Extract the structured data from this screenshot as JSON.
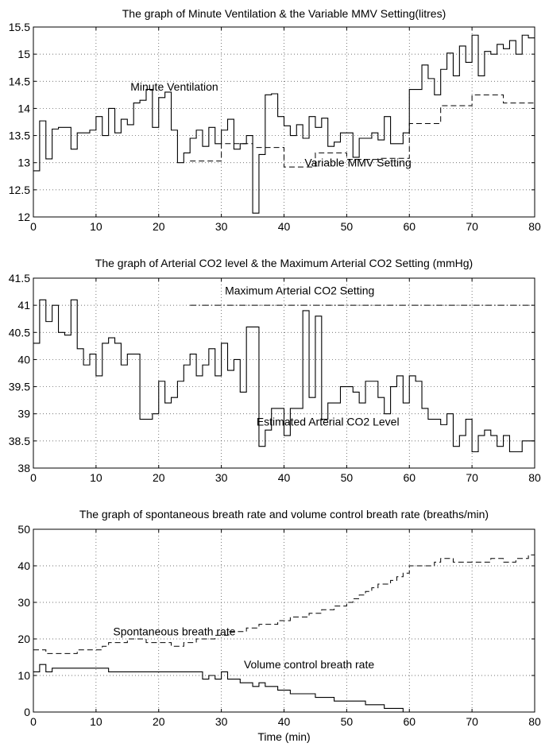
{
  "chart_data": [
    {
      "type": "line",
      "title": "The graph of Minute Ventilation & the Variable MMV Setting(litres)",
      "xlabel": "",
      "ylabel": "",
      "xlim": [
        0,
        80
      ],
      "ylim": [
        12,
        15.5
      ],
      "xticks": [
        0,
        10,
        20,
        30,
        40,
        50,
        60,
        70,
        80
      ],
      "yticks": [
        12,
        12.5,
        13,
        13.5,
        14,
        14.5,
        15,
        15.5
      ],
      "xtick_labels": [
        "0",
        "10",
        "20",
        "30",
        "40",
        "50",
        "60",
        "70",
        "80"
      ],
      "ytick_labels": [
        "12",
        "12.5",
        "13",
        "13.5",
        "14",
        "14.5",
        "15",
        "15.5"
      ],
      "grid": true,
      "series": [
        {
          "name": "Minute Ventilation",
          "style": "solid",
          "step": true,
          "x": [
            0,
            1,
            2,
            3,
            4,
            5,
            6,
            7,
            8,
            9,
            10,
            11,
            12,
            13,
            14,
            15,
            16,
            17,
            18,
            19,
            20,
            21,
            22,
            23,
            24,
            25,
            26,
            27,
            28,
            29,
            30,
            31,
            32,
            33,
            34,
            35,
            36,
            37,
            38,
            39,
            40,
            41,
            42,
            43,
            44,
            45,
            46,
            47,
            48,
            49,
            50,
            51,
            52,
            53,
            54,
            55,
            56,
            57,
            58,
            59,
            60,
            61,
            62,
            63,
            64,
            65,
            66,
            67,
            68,
            69,
            70,
            71,
            72,
            73,
            74,
            75,
            76,
            77,
            78,
            79,
            80
          ],
          "y": [
            12.85,
            13.77,
            13.07,
            13.62,
            13.65,
            13.65,
            13.25,
            13.55,
            13.55,
            13.6,
            13.85,
            13.5,
            14.0,
            13.55,
            13.8,
            13.7,
            14.1,
            14.15,
            14.35,
            13.65,
            14.2,
            14.3,
            13.6,
            13.0,
            13.18,
            13.45,
            13.6,
            13.3,
            13.65,
            13.35,
            13.6,
            13.8,
            13.25,
            13.35,
            13.5,
            12.07,
            13.15,
            14.25,
            14.27,
            13.85,
            13.68,
            13.5,
            13.7,
            13.45,
            13.85,
            13.65,
            13.82,
            13.3,
            13.38,
            13.55,
            13.55,
            13.1,
            13.45,
            13.45,
            13.55,
            13.42,
            13.85,
            13.35,
            13.35,
            13.55,
            14.35,
            14.35,
            14.8,
            14.55,
            14.25,
            14.72,
            15.02,
            14.6,
            15.15,
            14.85,
            15.35,
            14.6,
            15.05,
            15.0,
            15.18,
            15.1,
            15.25,
            15.0,
            15.35,
            15.3,
            15.05
          ]
        },
        {
          "name": "Variable MMV Setting",
          "style": "dashed",
          "step": true,
          "x": [
            25,
            30,
            35,
            40,
            45,
            50,
            55,
            60,
            65,
            70,
            75,
            80
          ],
          "y": [
            13.03,
            13.35,
            13.28,
            12.92,
            13.18,
            13.06,
            13.08,
            13.72,
            14.05,
            14.25,
            14.1,
            14.1
          ]
        }
      ],
      "annotations": [
        {
          "text": "Minute Ventilation",
          "x": 22.5,
          "y": 14.33
        },
        {
          "text": "Variable MMV Setting",
          "x": 51.8,
          "y": 12.93
        }
      ]
    },
    {
      "type": "line",
      "title": "The graph of Arterial CO2 level & the Maximum Arterial CO2 Setting (mmHg)",
      "xlabel": "",
      "ylabel": "",
      "xlim": [
        0,
        80
      ],
      "ylim": [
        38,
        41.5
      ],
      "xticks": [
        0,
        10,
        20,
        30,
        40,
        50,
        60,
        70,
        80
      ],
      "yticks": [
        38,
        38.5,
        39,
        39.5,
        40,
        40.5,
        41,
        41.5
      ],
      "xtick_labels": [
        "0",
        "10",
        "20",
        "30",
        "40",
        "50",
        "60",
        "70",
        "80"
      ],
      "ytick_labels": [
        "38",
        "38.5",
        "39",
        "39.5",
        "40",
        "40.5",
        "41",
        "41.5"
      ],
      "grid": true,
      "series": [
        {
          "name": "Estimated Arterial CO2 Level",
          "style": "solid",
          "step": true,
          "x": [
            0,
            1,
            2,
            3,
            4,
            5,
            6,
            7,
            8,
            9,
            10,
            11,
            12,
            13,
            14,
            15,
            16,
            17,
            18,
            19,
            20,
            21,
            22,
            23,
            24,
            25,
            26,
            27,
            28,
            29,
            30,
            31,
            32,
            33,
            34,
            35,
            36,
            37,
            38,
            39,
            40,
            41,
            42,
            43,
            44,
            45,
            46,
            47,
            48,
            49,
            50,
            51,
            52,
            53,
            54,
            55,
            56,
            57,
            58,
            59,
            60,
            61,
            62,
            63,
            64,
            65,
            66,
            67,
            68,
            69,
            70,
            71,
            72,
            73,
            74,
            75,
            76,
            77,
            78,
            79,
            80
          ],
          "y": [
            40.3,
            41.1,
            40.7,
            41.0,
            40.5,
            40.45,
            41.1,
            40.2,
            39.9,
            40.1,
            39.7,
            40.3,
            40.4,
            40.3,
            39.9,
            40.1,
            40.1,
            38.9,
            38.9,
            39.0,
            39.6,
            39.2,
            39.3,
            39.6,
            39.9,
            40.1,
            39.7,
            39.9,
            40.2,
            39.7,
            40.3,
            39.8,
            40.0,
            39.4,
            40.6,
            40.6,
            38.4,
            38.7,
            39.1,
            39.1,
            38.6,
            39.1,
            39.1,
            40.9,
            39.3,
            40.8,
            38.9,
            39.2,
            39.2,
            39.5,
            39.5,
            39.4,
            39.2,
            39.6,
            39.6,
            39.3,
            39.0,
            39.5,
            39.7,
            39.2,
            39.7,
            39.6,
            39.1,
            38.9,
            38.9,
            38.8,
            39.0,
            38.4,
            38.6,
            38.9,
            38.3,
            38.6,
            38.7,
            38.6,
            38.4,
            38.6,
            38.3,
            38.3,
            38.5,
            38.5,
            38.5
          ]
        },
        {
          "name": "Maximum Arterial CO2 Setting",
          "style": "dashdot",
          "step": false,
          "x": [
            25,
            80
          ],
          "y": [
            41.0,
            41.0
          ]
        }
      ],
      "annotations": [
        {
          "text": "Maximum Arterial CO2 Setting",
          "x": 42.5,
          "y": 41.2
        },
        {
          "text": "Estimated Arterial CO2 Level",
          "x": 47.0,
          "y": 38.78
        }
      ]
    },
    {
      "type": "line",
      "title": "The graph of spontaneous breath rate and volume control breath rate (breaths/min)",
      "xlabel": "Time (min)",
      "ylabel": "",
      "xlim": [
        0,
        80
      ],
      "ylim": [
        0,
        50
      ],
      "xticks": [
        0,
        10,
        20,
        30,
        40,
        50,
        60,
        70,
        80
      ],
      "yticks": [
        0,
        10,
        20,
        30,
        40,
        50
      ],
      "xtick_labels": [
        "0",
        "10",
        "20",
        "30",
        "40",
        "50",
        "60",
        "70",
        "80"
      ],
      "ytick_labels": [
        "0",
        "10",
        "20",
        "30",
        "40",
        "50"
      ],
      "grid": true,
      "series": [
        {
          "name": "Spontaneous breath rate",
          "style": "dashed",
          "step": true,
          "x": [
            0,
            1,
            2,
            3,
            4,
            5,
            6,
            7,
            8,
            9,
            10,
            11,
            12,
            13,
            14,
            15,
            16,
            17,
            18,
            19,
            20,
            21,
            22,
            23,
            24,
            25,
            26,
            27,
            28,
            29,
            30,
            31,
            32,
            33,
            34,
            35,
            36,
            37,
            38,
            39,
            40,
            41,
            42,
            43,
            44,
            45,
            46,
            47,
            48,
            49,
            50,
            51,
            52,
            53,
            54,
            55,
            56,
            57,
            58,
            59,
            60,
            61,
            62,
            63,
            64,
            65,
            66,
            67,
            68,
            69,
            70,
            71,
            72,
            73,
            74,
            75,
            76,
            77,
            78,
            79,
            80
          ],
          "y": [
            17,
            17,
            16,
            16,
            16,
            16,
            16,
            17,
            17,
            17,
            17,
            18,
            19,
            19,
            19,
            20,
            20,
            20,
            19,
            19,
            19,
            19,
            18,
            18,
            19,
            19,
            20,
            20,
            20,
            21,
            21,
            22,
            22,
            22,
            23,
            23,
            24,
            24,
            24,
            25,
            25,
            26,
            26,
            26,
            27,
            27,
            28,
            28,
            29,
            29,
            30,
            31,
            32,
            33,
            34,
            35,
            35,
            36,
            37,
            38,
            40,
            40,
            40,
            40,
            41,
            42,
            42,
            41,
            41,
            41,
            41,
            41,
            41,
            42,
            42,
            41,
            41,
            42,
            42,
            43,
            42
          ]
        },
        {
          "name": "Volume control breath rate",
          "style": "solid",
          "step": true,
          "x": [
            0,
            1,
            2,
            3,
            4,
            5,
            6,
            7,
            8,
            9,
            10,
            11,
            12,
            13,
            14,
            15,
            16,
            17,
            18,
            19,
            20,
            21,
            22,
            23,
            24,
            25,
            26,
            27,
            28,
            29,
            30,
            31,
            32,
            33,
            34,
            35,
            36,
            37,
            38,
            39,
            40,
            41,
            42,
            43,
            44,
            45,
            46,
            47,
            48,
            49,
            50,
            51,
            52,
            53,
            54,
            55,
            56,
            57,
            58,
            59,
            60
          ],
          "y": [
            11,
            13,
            11,
            12,
            12,
            12,
            12,
            12,
            12,
            12,
            12,
            12,
            11,
            11,
            11,
            11,
            11,
            11,
            11,
            11,
            11,
            11,
            11,
            11,
            11,
            11,
            11,
            9,
            10,
            9,
            11,
            9,
            9,
            8,
            8,
            7,
            8,
            7,
            7,
            6,
            6,
            5,
            5,
            5,
            5,
            4,
            4,
            4,
            3,
            3,
            3,
            3,
            3,
            2,
            2,
            2,
            1,
            1,
            1,
            0,
            0
          ]
        }
      ],
      "annotations": [
        {
          "text": "Spontaneous breath rate",
          "x": 22.5,
          "y": 21.0
        },
        {
          "text": "Volume control breath rate",
          "x": 44.0,
          "y": 12.0
        }
      ]
    }
  ]
}
